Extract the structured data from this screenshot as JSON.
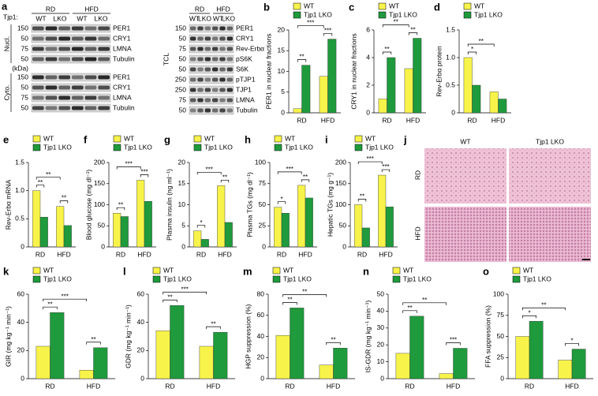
{
  "blots": {
    "panel": "a",
    "genotype_label": "Tjp1:",
    "diets": [
      "RD",
      "HFD"
    ],
    "genotypes": [
      "WT",
      "LKO"
    ],
    "kda_unit": "(kDa)",
    "left": {
      "sections": [
        {
          "name": "Nucl.",
          "rows": [
            {
              "kda": 150,
              "label": "PER1"
            },
            {
              "kda": 50,
              "label": "CRY1"
            },
            {
              "kda": 75,
              "label": "LMNA"
            },
            {
              "kda": 50,
              "label": "Tubulin"
            }
          ]
        },
        {
          "name": "Cyto.",
          "rows": [
            {
              "kda": 150,
              "label": "PER1"
            },
            {
              "kda": 50,
              "label": "CRY1"
            },
            {
              "kda": 75,
              "label": "LMNA"
            },
            {
              "kda": 50,
              "label": "Tubulin"
            }
          ]
        }
      ]
    },
    "right": {
      "name": "TCL",
      "rows": [
        {
          "kda": 150,
          "label": "PER1"
        },
        {
          "kda": 50,
          "label": "CRY1"
        },
        {
          "kda": 75,
          "label": "Rev-Erbα"
        },
        {
          "kda": 50,
          "label": "pS6K"
        },
        {
          "kda": 50,
          "label": "S6K"
        },
        {
          "kda": 250,
          "label": "pTJP1"
        },
        {
          "kda": 250,
          "label": "TJP1"
        },
        {
          "kda": 75,
          "label": "LMNA"
        },
        {
          "kda": 50,
          "label": "Tubulin"
        }
      ]
    }
  },
  "histology": {
    "panel": "j",
    "columns": [
      "WT",
      "Tjp1 LKO"
    ],
    "rows": [
      "RD",
      "HFD"
    ]
  },
  "chart_data": [
    {
      "panel": "b",
      "type": "bar",
      "ylabel": "PER1 in nuclear fractions",
      "categories": [
        "RD",
        "HFD"
      ],
      "series": [
        {
          "name": "WT",
          "color": "#f7f34a",
          "values": [
            1,
            8.8
          ]
        },
        {
          "name": "Tjp1 LKO",
          "color": "#1f9a3c",
          "values": [
            11.5,
            17.8
          ]
        }
      ],
      "ylim": [
        0,
        20
      ],
      "yticks": [
        0,
        5,
        10,
        15,
        20
      ],
      "significance": {
        "within_RD": "**",
        "between_diets": "***",
        "within_HFD": "***"
      }
    },
    {
      "panel": "c",
      "type": "bar",
      "ylabel": "CRY1 in nuclear fractions",
      "categories": [
        "RD",
        "HFD"
      ],
      "series": [
        {
          "name": "WT",
          "color": "#f7f34a",
          "values": [
            1,
            3.2
          ]
        },
        {
          "name": "Tjp1 LKO",
          "color": "#1f9a3c",
          "values": [
            4,
            5.4
          ]
        }
      ],
      "ylim": [
        0,
        6
      ],
      "yticks": [
        0,
        2,
        4,
        6
      ],
      "significance": {
        "within_RD": "**",
        "between_diets": "**",
        "within_HFD": "**"
      }
    },
    {
      "panel": "d",
      "type": "bar",
      "ylabel": "Rev-Erbα protein",
      "categories": [
        "RD",
        "HFD"
      ],
      "series": [
        {
          "name": "WT",
          "color": "#f7f34a",
          "values": [
            1,
            0.38
          ]
        },
        {
          "name": "Tjp1 LKO",
          "color": "#1f9a3c",
          "values": [
            0.5,
            0.25
          ]
        }
      ],
      "ylim": [
        0,
        1.5
      ],
      "yticks": [
        0,
        0.5,
        {
          "value": 1,
          "label": "1.0"
        },
        1.5
      ],
      "significance": {
        "within_RD": "*",
        "between_diets": "**"
      }
    },
    {
      "panel": "e",
      "type": "bar",
      "ylabel": "Rev-Erbα mRNA",
      "categories": [
        "RD",
        "HFD"
      ],
      "series": [
        {
          "name": "WT",
          "color": "#f7f34a",
          "values": [
            1,
            0.72
          ]
        },
        {
          "name": "Tjp1 LKO",
          "color": "#1f9a3c",
          "values": [
            0.53,
            0.38
          ]
        }
      ],
      "ylim": [
        0,
        1.5
      ],
      "yticks": [
        0,
        0.5,
        {
          "value": 1,
          "label": "1.0"
        },
        1.5
      ],
      "significance": {
        "within_RD": "**",
        "between_diets": "**",
        "within_HFD": "**"
      }
    },
    {
      "panel": "f",
      "type": "bar",
      "ylabel": "Blood glucose (mg dl⁻¹)",
      "categories": [
        "RD",
        "HFD"
      ],
      "series": [
        {
          "name": "WT",
          "color": "#f7f34a",
          "values": [
            80,
            158
          ]
        },
        {
          "name": "Tjp1 LKO",
          "color": "#1f9a3c",
          "values": [
            72,
            108
          ]
        }
      ],
      "ylim": [
        0,
        200
      ],
      "yticks": [
        0,
        50,
        100,
        150,
        200
      ],
      "significance": {
        "within_RD": "**",
        "between_diets": "***",
        "within_HFD": "***"
      }
    },
    {
      "panel": "g",
      "type": "bar",
      "ylabel": "Plasma insulin (ng ml⁻¹)",
      "categories": [
        "RD",
        "HFD"
      ],
      "series": [
        {
          "name": "WT",
          "color": "#f7f34a",
          "values": [
            3.8,
            14.5
          ]
        },
        {
          "name": "Tjp1 LKO",
          "color": "#1f9a3c",
          "values": [
            1.8,
            5.8
          ]
        }
      ],
      "ylim": [
        0,
        20
      ],
      "yticks": [
        0,
        5,
        10,
        15,
        20
      ],
      "significance": {
        "within_RD": "*",
        "between_diets": "***",
        "within_HFD": "**"
      }
    },
    {
      "panel": "h",
      "type": "bar",
      "ylabel": "Plasma TGs (mg dl⁻¹)",
      "categories": [
        "RD",
        "HFD"
      ],
      "series": [
        {
          "name": "WT",
          "color": "#f7f34a",
          "values": [
            47,
            73
          ]
        },
        {
          "name": "Tjp1 LKO",
          "color": "#1f9a3c",
          "values": [
            40,
            58
          ]
        }
      ],
      "ylim": [
        0,
        100
      ],
      "yticks": [
        0,
        25,
        50,
        75,
        100
      ],
      "significance": {
        "within_RD": "*",
        "between_diets": "***",
        "within_HFD": "**"
      }
    },
    {
      "panel": "i",
      "type": "bar",
      "ylabel": "Hepatic TGs (mg g⁻¹)",
      "categories": [
        "RD",
        "HFD"
      ],
      "series": [
        {
          "name": "WT",
          "color": "#f7f34a",
          "values": [
            100,
            170
          ]
        },
        {
          "name": "Tjp1 LKO",
          "color": "#1f9a3c",
          "values": [
            45,
            95
          ]
        }
      ],
      "ylim": [
        0,
        200
      ],
      "yticks": [
        0,
        50,
        100,
        150,
        200
      ],
      "significance": {
        "within_RD": "**",
        "between_diets": "***",
        "within_HFD": "***"
      }
    },
    {
      "panel": "k",
      "type": "bar",
      "ylabel": "GIR (mg kg⁻¹ min⁻¹)",
      "categories": [
        "RD",
        "HFD"
      ],
      "series": [
        {
          "name": "WT",
          "color": "#f7f34a",
          "values": [
            23,
            6
          ]
        },
        {
          "name": "Tjp1 LKO",
          "color": "#1f9a3c",
          "values": [
            47,
            22
          ]
        }
      ],
      "ylim": [
        0,
        60
      ],
      "yticks": [
        0,
        20,
        40,
        60
      ],
      "significance": {
        "within_RD": "**",
        "between_diets": "***",
        "within_HFD": "**"
      }
    },
    {
      "panel": "l",
      "type": "bar",
      "ylabel": "GDR (mg kg⁻¹ min⁻¹)",
      "categories": [
        "RD",
        "HFD"
      ],
      "series": [
        {
          "name": "WT",
          "color": "#f7f34a",
          "values": [
            34,
            23
          ]
        },
        {
          "name": "Tjp1 LKO",
          "color": "#1f9a3c",
          "values": [
            52,
            33
          ]
        }
      ],
      "ylim": [
        0,
        60
      ],
      "yticks": [
        0,
        20,
        40,
        60
      ],
      "significance": {
        "within_RD": "**",
        "between_diets": "***",
        "within_HFD": "**"
      }
    },
    {
      "panel": "m",
      "type": "bar",
      "ylabel": "HGP suppression (%)",
      "categories": [
        "RD",
        "HFD"
      ],
      "series": [
        {
          "name": "WT",
          "color": "#f7f34a",
          "values": [
            41,
            13
          ]
        },
        {
          "name": "Tjp1 LKO",
          "color": "#1f9a3c",
          "values": [
            67,
            29
          ]
        }
      ],
      "ylim": [
        0,
        80
      ],
      "yticks": [
        0,
        20,
        40,
        60,
        80
      ],
      "significance": {
        "within_RD": "**",
        "between_diets": "**",
        "within_HFD": "**"
      }
    },
    {
      "panel": "n",
      "type": "bar",
      "ylabel": "IS-GDR (mg kg⁻¹ min⁻¹)",
      "categories": [
        "RD",
        "HFD"
      ],
      "series": [
        {
          "name": "WT",
          "color": "#f7f34a",
          "values": [
            15,
            3
          ]
        },
        {
          "name": "Tjp1 LKO",
          "color": "#1f9a3c",
          "values": [
            37,
            18
          ]
        }
      ],
      "ylim": [
        0,
        50
      ],
      "yticks": [
        0,
        10,
        20,
        30,
        40,
        50
      ],
      "significance": {
        "within_RD": "**",
        "between_diets": "**",
        "within_HFD": "***"
      }
    },
    {
      "panel": "o",
      "type": "bar",
      "ylabel": "FFA suppression (%)",
      "categories": [
        "RD",
        "HFD"
      ],
      "series": [
        {
          "name": "WT",
          "color": "#f7f34a",
          "values": [
            50,
            22
          ]
        },
        {
          "name": "Tjp1 LKO",
          "color": "#1f9a3c",
          "values": [
            68,
            35
          ]
        }
      ],
      "ylim": [
        0,
        100
      ],
      "yticks": [
        0,
        25,
        50,
        75,
        100
      ],
      "significance": {
        "within_RD": "*",
        "between_diets": "**",
        "within_HFD": "*"
      }
    }
  ]
}
